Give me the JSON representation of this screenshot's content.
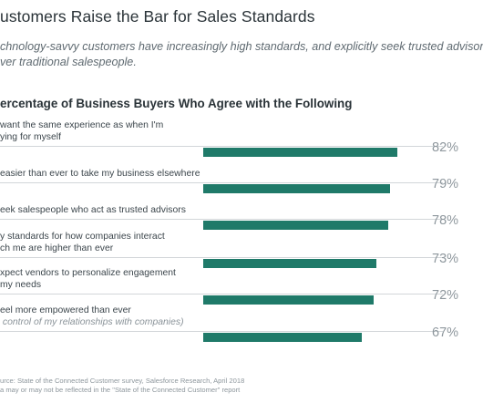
{
  "header": {
    "title": "ustomers Raise the Bar for Sales Standards",
    "subtitle_line1": "chnology-savvy customers have increasingly high standards, and explicitly seek trusted advisors",
    "subtitle_line2": "ver traditional salespeople."
  },
  "chart_heading": "ercentage of Business Buyers Who Agree with the Following",
  "chart_data": {
    "type": "bar",
    "orientation": "horizontal",
    "title": "ercentage of Business Buyers Who Agree with the Following",
    "color": "#1f7a69",
    "xlim": [
      0,
      100
    ],
    "unit": "%",
    "categories": [
      [
        "want the same experience as when I'm",
        "ying for myself"
      ],
      [
        "easier than ever to take my business elsewhere"
      ],
      [
        "eek salespeople who act as trusted advisors"
      ],
      [
        "y standards for how companies interact",
        "ch me are higher than ever"
      ],
      [
        "xpect vendors to personalize engagement",
        "my needs"
      ],
      [
        "eel more empowered than ever",
        "control of my relationships with companies)"
      ]
    ],
    "values": [
      82,
      79,
      78,
      73,
      72,
      67
    ],
    "value_labels": [
      "82%",
      "79%",
      "78%",
      "73%",
      "72%",
      "67%"
    ]
  },
  "footnote": {
    "line1": "urce: State of the Connected Customer survey, Salesforce Research, April 2018",
    "line2": "a may or may not be reflected in the \"State of the Connected Customer\" report"
  }
}
